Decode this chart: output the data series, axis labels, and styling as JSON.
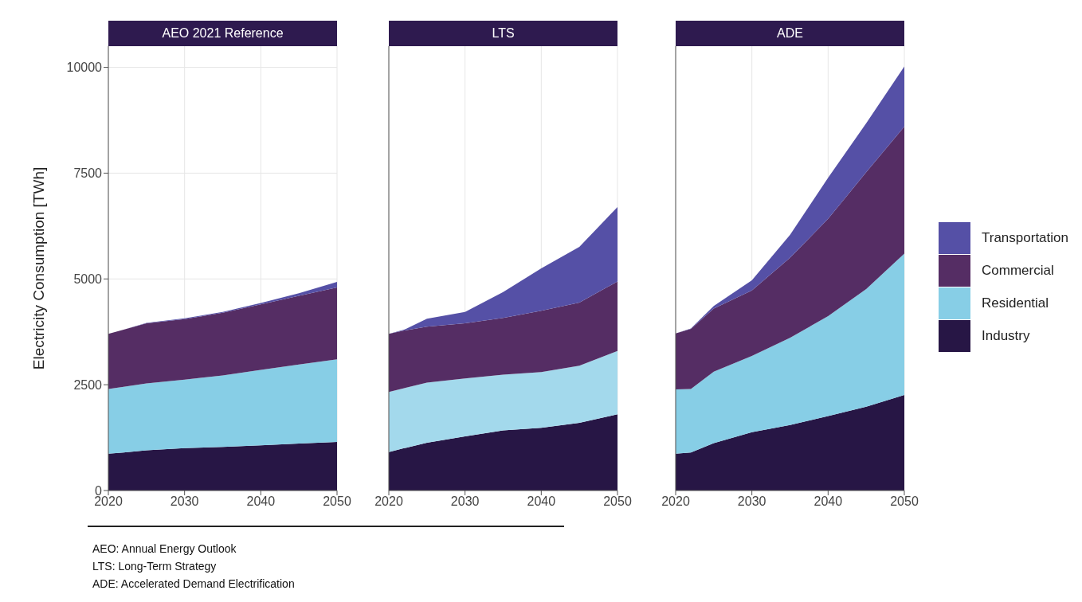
{
  "chart_data": [
    {
      "type": "area",
      "title": "AEO 2021 Reference",
      "ylabel": "Electricity Consumption [TWh]",
      "stacked": true,
      "x": [
        2020,
        2022,
        2025,
        2030,
        2035,
        2040,
        2045,
        2050
      ],
      "xlim": [
        2020,
        2050
      ],
      "xticks": [
        2020,
        2030,
        2040,
        2050
      ],
      "ylim": [
        0,
        10500
      ],
      "yticks": [
        0,
        2500,
        5000,
        7500,
        10000
      ],
      "grid": true,
      "series": [
        {
          "color": "#271645",
          "values": [
            870,
            900,
            950,
            1000,
            1030,
            1070,
            1110,
            1150
          ]
        },
        {
          "color": "#87cee6",
          "values": [
            1530,
            1550,
            1580,
            1620,
            1690,
            1780,
            1870,
            1950
          ]
        },
        {
          "color": "#552d64",
          "values": [
            1300,
            1350,
            1420,
            1430,
            1480,
            1550,
            1620,
            1700
          ]
        },
        {
          "color": "#5550a6",
          "values": [
            0,
            0,
            10,
            20,
            20,
            30,
            60,
            130
          ]
        }
      ],
      "annotations": [
        "AEO: Annual Energy Outlook",
        "LTS: Long-Term Strategy",
        "ADE: Accelerated Demand Electrification"
      ]
    },
    {
      "type": "area",
      "title": "LTS",
      "stacked": true,
      "x": [
        2020,
        2022,
        2025,
        2030,
        2035,
        2040,
        2045,
        2050
      ],
      "xlim": [
        2020,
        2050
      ],
      "xticks": [
        2020,
        2030,
        2040,
        2050
      ],
      "ylim": [
        0,
        10500
      ],
      "yticks": [
        0,
        2500,
        5000,
        7500,
        10000
      ],
      "grid": true,
      "tick_labels": "x",
      "series": [
        {
          "color": "#271645",
          "values": [
            910,
            1000,
            1130,
            1280,
            1420,
            1480,
            1600,
            1800
          ]
        },
        {
          "color": "#a3d9ec",
          "values": [
            1420,
            1420,
            1420,
            1370,
            1320,
            1320,
            1350,
            1500
          ]
        },
        {
          "color": "#552d64",
          "values": [
            1370,
            1360,
            1320,
            1300,
            1340,
            1450,
            1490,
            1640
          ]
        },
        {
          "color": "#5550a6",
          "values": [
            0,
            20,
            190,
            270,
            610,
            1000,
            1320,
            1760
          ]
        }
      ]
    },
    {
      "type": "area",
      "title": "ADE",
      "stacked": true,
      "x": [
        2020,
        2022,
        2025,
        2030,
        2035,
        2040,
        2045,
        2050
      ],
      "xlim": [
        2020,
        2050
      ],
      "xticks": [
        2020,
        2030,
        2040,
        2050
      ],
      "ylim": [
        0,
        10500
      ],
      "yticks": [
        0,
        2500,
        5000,
        7500,
        10000
      ],
      "grid": true,
      "legend": "right",
      "tick_labels": "x",
      "series": [
        {
          "name": "Industry",
          "color": "#271645",
          "values": [
            870,
            900,
            1120,
            1380,
            1550,
            1760,
            1980,
            2260
          ]
        },
        {
          "name": "Residential",
          "color": "#87cee6",
          "values": [
            1520,
            1500,
            1690,
            1800,
            2060,
            2360,
            2780,
            3340
          ]
        },
        {
          "name": "Commercial",
          "color": "#552d64",
          "values": [
            1320,
            1420,
            1490,
            1550,
            1890,
            2300,
            2760,
            3000
          ]
        },
        {
          "name": "Transportation",
          "color": "#5550a6",
          "values": [
            0,
            10,
            60,
            240,
            540,
            970,
            1160,
            1420
          ]
        }
      ]
    }
  ]
}
